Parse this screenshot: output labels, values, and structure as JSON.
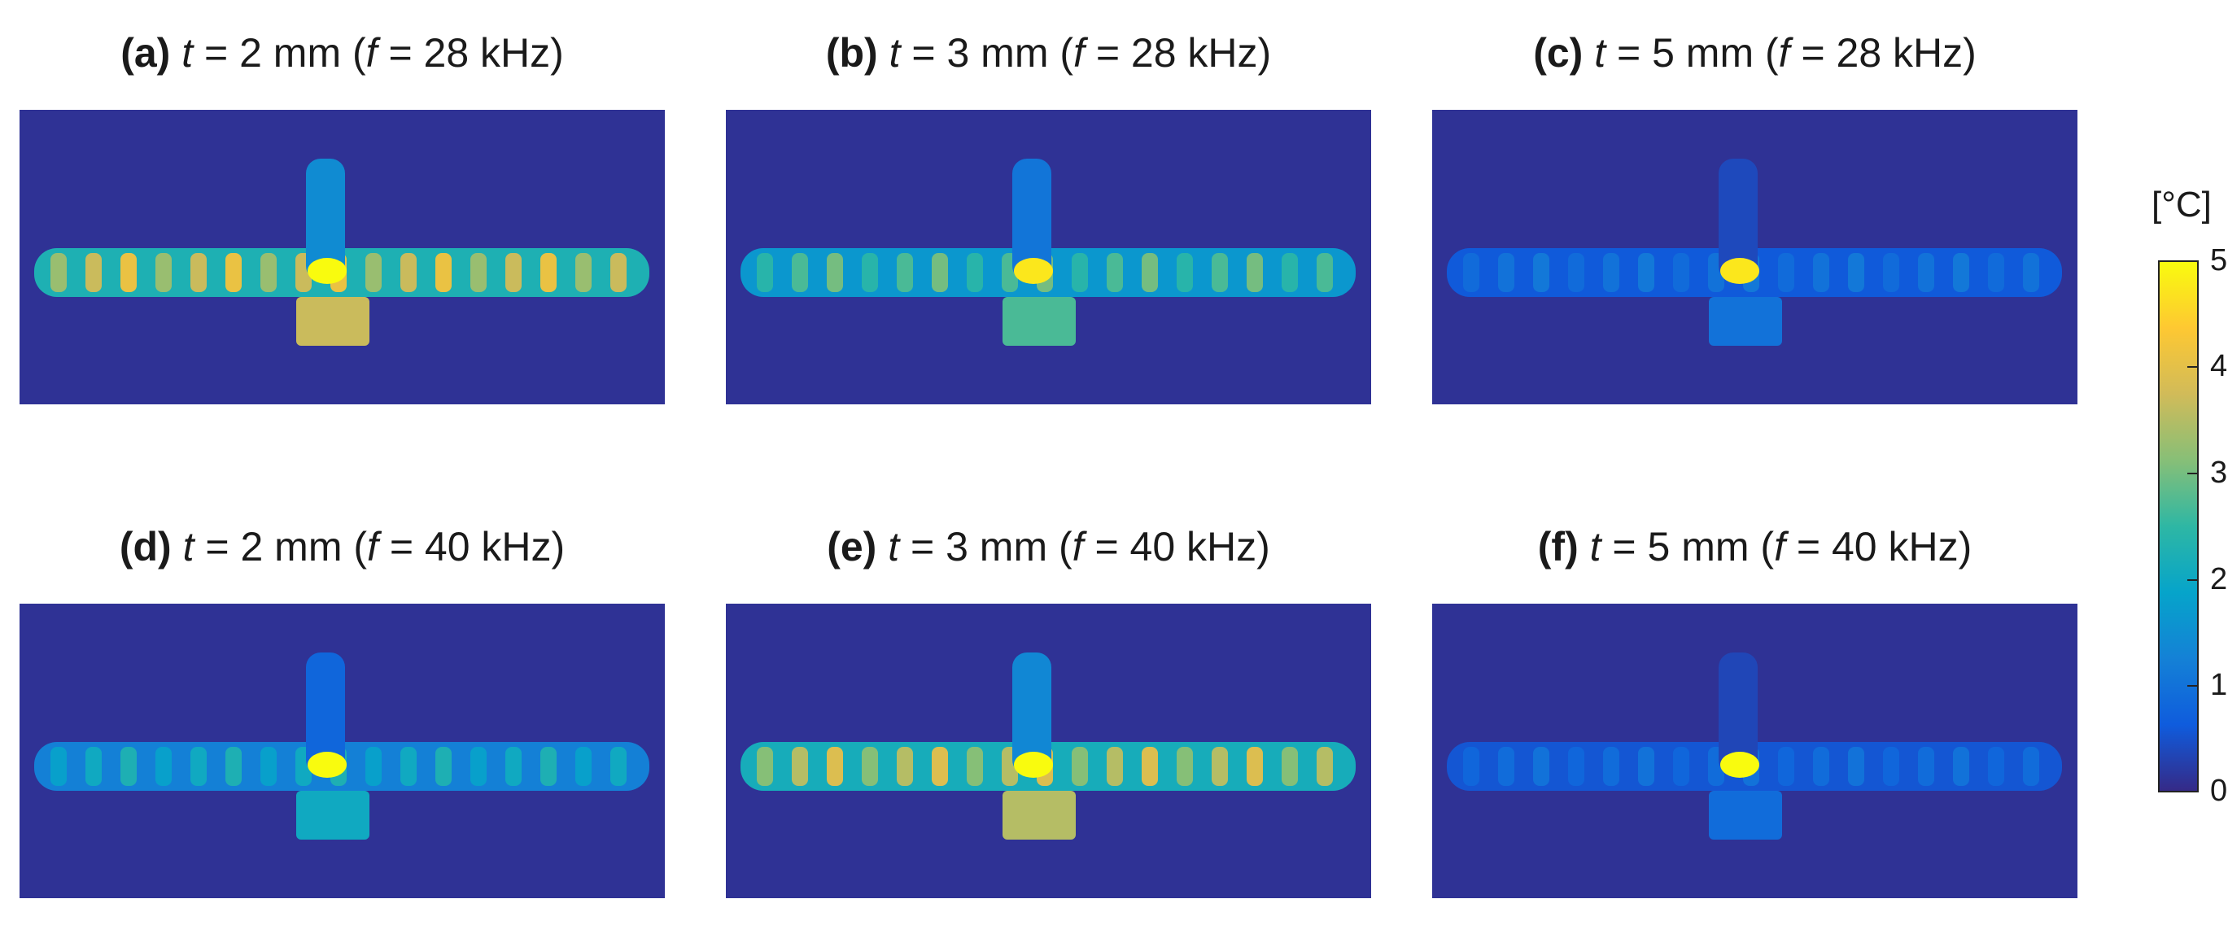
{
  "panels": [
    {
      "letter": "(a)",
      "t_var": "t",
      "t_eq": " = 2 mm (",
      "f_var": "f",
      "f_eq": " = 28 kHz)",
      "intensity": 0.82,
      "joint": 1.0
    },
    {
      "letter": "(b)",
      "t_var": "t",
      "t_eq": " = 3 mm (",
      "f_var": "f",
      "f_eq": " = 28 kHz)",
      "intensity": 0.6,
      "joint": 0.95
    },
    {
      "letter": "(c)",
      "t_var": "t",
      "t_eq": " = 5 mm (",
      "f_var": "f",
      "f_eq": " = 28 kHz)",
      "intensity": 0.22,
      "joint": 0.95
    },
    {
      "letter": "(d)",
      "t_var": "t",
      "t_eq": " = 2 mm (",
      "f_var": "f",
      "f_eq": " = 40 kHz)",
      "intensity": 0.45,
      "joint": 1.0
    },
    {
      "letter": "(e)",
      "t_var": "t",
      "t_eq": " = 3 mm (",
      "f_var": "f",
      "f_eq": " = 40 kHz)",
      "intensity": 0.78,
      "joint": 1.0
    },
    {
      "letter": "(f)",
      "t_var": "t",
      "t_eq": " = 5 mm (",
      "f_var": "f",
      "f_eq": " = 40 kHz)",
      "intensity": 0.2,
      "joint": 1.0
    }
  ],
  "colorbar": {
    "unit": "[°C]",
    "ticks": [
      "5",
      "4",
      "3",
      "2",
      "1",
      "0"
    ],
    "min": 0,
    "max": 5,
    "colormap": [
      "#352a87",
      "#0f5cdd",
      "#1481d6",
      "#06a4ca",
      "#2eb7a4",
      "#87bf77",
      "#d1bb59",
      "#fec832",
      "#f9fb0e"
    ]
  }
}
